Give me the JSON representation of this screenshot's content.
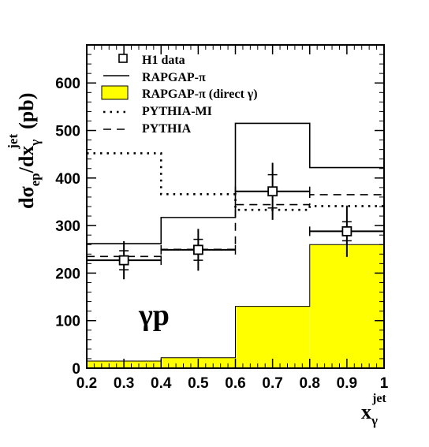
{
  "chart_data": {
    "type": "line",
    "xlim": [
      0.2,
      1.0
    ],
    "ylim": [
      0,
      680
    ],
    "x_ticks": [
      0.2,
      0.3,
      0.4,
      0.5,
      0.6,
      0.7,
      0.8,
      0.9,
      1.0
    ],
    "x_tick_labels": [
      "0.2",
      "0.3",
      "0.4",
      "0.5",
      "0.6",
      "0.7",
      "0.8",
      "0.9",
      "1"
    ],
    "y_ticks": [
      0,
      100,
      200,
      300,
      400,
      500,
      600
    ],
    "y_tick_labels": [
      "0",
      "100",
      "200",
      "300",
      "400",
      "500",
      "600"
    ],
    "ylabel": {
      "main": "dσ",
      "sub1": "ep",
      "mid": "/dx",
      "sub2": "γ",
      "sup": "jet",
      "unit": "(pb)"
    },
    "xlabel": {
      "main": "x",
      "sub": "γ",
      "sup": "jet"
    },
    "annotation": "γp",
    "grid": false,
    "legend_position": "top-left",
    "bin_edges": [
      0.2,
      0.4,
      0.6,
      0.8,
      1.0
    ],
    "series": [
      {
        "name": "H1 data",
        "kind": "points",
        "x": [
          0.3,
          0.5,
          0.7,
          0.9
        ],
        "y": [
          227,
          249,
          372,
          288
        ],
        "err_stat": [
          20,
          22,
          35,
          20
        ],
        "err_tot": [
          40,
          44,
          60,
          54
        ],
        "x_err": 0.1
      },
      {
        "name": "RAPGAP-π",
        "kind": "hist",
        "style": "solid",
        "values": [
          262,
          317,
          515,
          422
        ]
      },
      {
        "name": "RAPGAP-π (direct γ)",
        "kind": "hist-filled",
        "color": "#ffff00",
        "values": [
          15,
          22,
          130,
          260
        ]
      },
      {
        "name": "PYTHIA-MI",
        "kind": "hist",
        "style": "dotted",
        "values": [
          452,
          366,
          333,
          341
        ]
      },
      {
        "name": "PYTHIA",
        "kind": "hist",
        "style": "dashed",
        "values": [
          235,
          250,
          344,
          365
        ]
      }
    ]
  }
}
